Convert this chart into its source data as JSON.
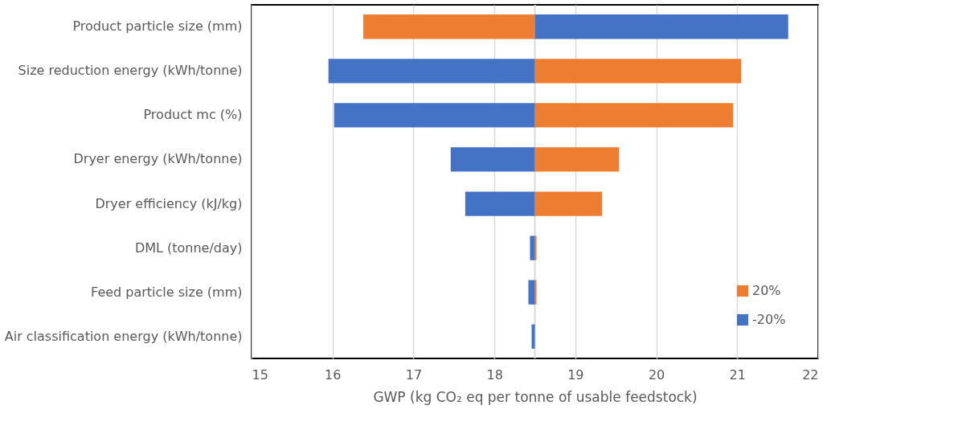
{
  "chart_data": {
    "type": "bar",
    "orientation": "horizontal",
    "categories": [
      "Product particle size (mm)",
      "Size reduction energy (kWh/tonne)",
      "Product mc (%)",
      "Dryer energy (kWh/tonne)",
      "Dryer efficiency (kJ/kg)",
      "DML (tonne/day)",
      "Feed particle size (mm)",
      "Air classification energy (kWh/tonne)"
    ],
    "series": [
      {
        "name": "20%",
        "color": "#ed7d31",
        "base": [
          18.5,
          18.5,
          18.5,
          18.5,
          18.5,
          18.5,
          18.5,
          null
        ],
        "values": [
          -2.12,
          2.55,
          2.45,
          1.04,
          0.83,
          0.02,
          0.02,
          null
        ]
      },
      {
        "name": "-20%",
        "color": "#4472c4",
        "base": [
          18.5,
          18.5,
          18.5,
          18.5,
          18.5,
          18.5,
          18.5,
          18.5
        ],
        "values": [
          3.13,
          -2.55,
          -2.48,
          -1.04,
          -0.86,
          -0.06,
          -0.08,
          -0.04
        ]
      }
    ],
    "xlabel": "GWP (kg CO₂ eq per tonne of usable feedstock)",
    "xlim": [
      15,
      22
    ],
    "xticks": [
      15,
      16,
      17,
      18,
      19,
      20,
      21,
      22
    ],
    "ref_lines": [
      {
        "axis": "x",
        "value": 18.5,
        "color": "#d9d9d9"
      }
    ],
    "grid": "x",
    "legend": "bottom right"
  }
}
